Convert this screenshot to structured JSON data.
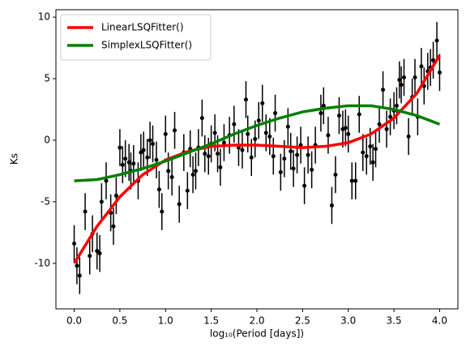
{
  "chart_data": {
    "type": "scatter",
    "xlabel": "log₁₀(Period [days])",
    "ylabel": "Ks",
    "xlim": [
      -0.2,
      4.2
    ],
    "ylim": [
      -13.7,
      10.6
    ],
    "xticks": [
      {
        "value": 0,
        "label": "0.0"
      },
      0.5,
      {
        "value": 1,
        "label": "1.0"
      },
      1.5,
      {
        "value": 2,
        "label": "2.0"
      },
      2.5,
      {
        "value": 3,
        "label": "3.0"
      },
      3.5,
      {
        "value": 4,
        "label": "4.0"
      }
    ],
    "yticks": [
      -10,
      -5,
      0,
      5,
      10
    ],
    "legend": "upper left",
    "points": {
      "color": "#000000",
      "yerr": 1.5,
      "x": [
        0,
        0.03,
        0.06,
        0.12,
        0.17,
        0.2,
        0.25,
        0.28,
        0.3,
        0.35,
        0.4,
        0.43,
        0.46,
        0.5,
        0.53,
        0.56,
        0.6,
        0.62,
        0.65,
        0.7,
        0.73,
        0.76,
        0.8,
        0.83,
        0.86,
        0.9,
        0.93,
        0.96,
        1.0,
        1.03,
        1.07,
        1.1,
        1.15,
        1.2,
        1.24,
        1.27,
        1.3,
        1.33,
        1.36,
        1.4,
        1.43,
        1.47,
        1.5,
        1.54,
        1.57,
        1.6,
        1.64,
        1.7,
        1.75,
        1.8,
        1.84,
        1.88,
        1.9,
        1.94,
        1.98,
        2.02,
        2.06,
        2.1,
        2.14,
        2.18,
        2.2,
        2.26,
        2.3,
        2.34,
        2.37,
        2.4,
        2.44,
        2.48,
        2.52,
        2.56,
        2.6,
        2.64,
        2.7,
        2.73,
        2.78,
        2.82,
        2.86,
        2.9,
        2.94,
        2.97,
        3.0,
        3.04,
        3.08,
        3.12,
        3.16,
        3.2,
        3.24,
        3.27,
        3.3,
        3.34,
        3.38,
        3.42,
        3.46,
        3.5,
        3.53,
        3.56,
        3.58,
        3.61,
        3.66,
        3.7,
        3.73,
        3.76,
        3.8,
        3.83,
        3.87,
        3.9,
        3.93,
        3.97,
        4.0
      ],
      "values": [
        -8.4,
        -10.2,
        -11,
        -5.8,
        -9.4,
        -7.6,
        -9,
        -9.2,
        -5,
        -3.3,
        -5.9,
        -7,
        -4.5,
        -0.6,
        -2,
        -1.5,
        -1.8,
        -2.5,
        -1.9,
        -3.3,
        -1,
        -0.8,
        -1.4,
        0,
        -0.3,
        -1.6,
        -4,
        -5.8,
        0.5,
        -2.5,
        -3,
        0.8,
        -5.2,
        -1,
        -4.1,
        -0.7,
        -2.8,
        -2.5,
        -0.6,
        1.8,
        -1.1,
        -1.3,
        -0.3,
        0.6,
        -1.1,
        -2.2,
        -0.2,
        0.4,
        1.3,
        -0.6,
        -0.8,
        3.3,
        0.5,
        -1.4,
        0.1,
        1.6,
        3,
        0.6,
        0.3,
        -1.3,
        2.2,
        -2.6,
        -1.5,
        1.1,
        -0.9,
        -2.3,
        -1.2,
        -0.4,
        -3.7,
        -1.2,
        -2.4,
        -0.4,
        2.2,
        2.8,
        0.4,
        -5.3,
        -2.8,
        2,
        0.9,
        1,
        0.5,
        -3.3,
        -3.3,
        2.1,
        -1,
        -1.3,
        -0.5,
        -1.8,
        -0.7,
        1.3,
        4.1,
        0.9,
        1.9,
        2.4,
        2.8,
        4.9,
        4.5,
        5.1,
        0.3,
        3.5,
        5.1,
        1.9,
        6,
        4.4,
        5.6,
        5.9,
        6.5,
        8.1,
        5.5
      ]
    },
    "fit_x": [
      0,
      0.25,
      0.5,
      0.75,
      1,
      1.25,
      1.5,
      1.75,
      2,
      2.25,
      2.5,
      2.75,
      3,
      3.25,
      3.5,
      3.75,
      4
    ],
    "series": [
      {
        "name": "LinearLSQFitter()",
        "color": "#ff0000",
        "values": [
          -10,
          -7,
          -4.6,
          -2.8,
          -1.6,
          -0.9,
          -0.5,
          -0.4,
          -0.4,
          -0.5,
          -0.6,
          -0.5,
          -0.2,
          0.5,
          1.8,
          3.8,
          6.9
        ]
      },
      {
        "name": "SimplexLSQFitter()",
        "color": "#008000",
        "values": [
          -3.3,
          -3.2,
          -2.8,
          -2.3,
          -1.7,
          -1,
          -0.3,
          0.5,
          1.2,
          1.8,
          2.3,
          2.6,
          2.8,
          2.8,
          2.5,
          2,
          1.3
        ]
      }
    ]
  }
}
